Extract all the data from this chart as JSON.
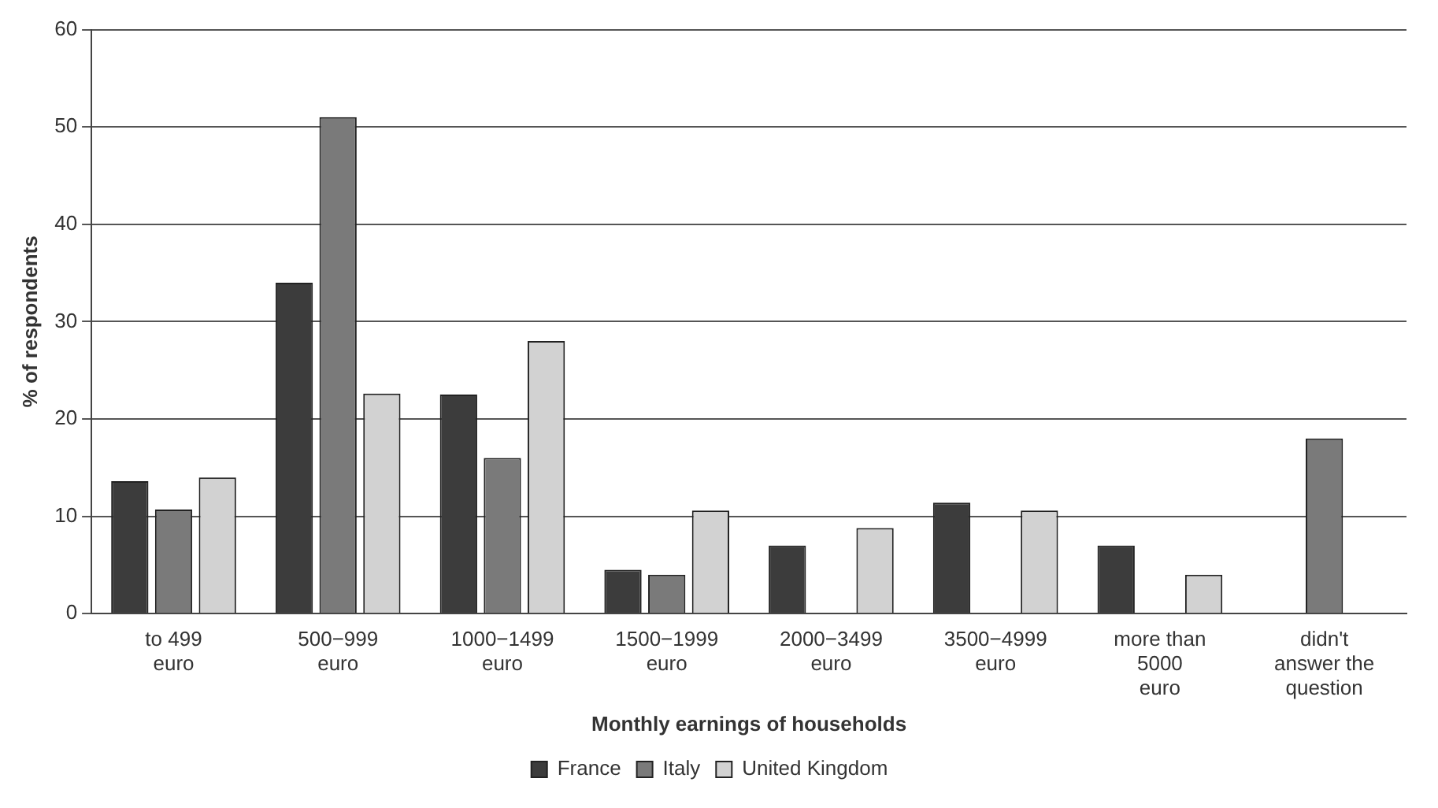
{
  "chart_data": {
    "type": "bar",
    "xlabel": "Monthly earnings of households",
    "ylabel": "% of respondents",
    "categories": [
      "to 499\neuro",
      "500−999\neuro",
      "1000−1499\neuro",
      "1500−1999\neuro",
      "2000−3499\neuro",
      "3500−4999\neuro",
      "more than\n5000\neuro",
      "didn't\nanswer the\nquestion"
    ],
    "series": [
      {
        "name": "France",
        "color": "#3c3c3c",
        "values": [
          13.6,
          34,
          22.5,
          4.5,
          7,
          11.4,
          7,
          null
        ]
      },
      {
        "name": "Italy",
        "color": "#7a7a7a",
        "values": [
          10.7,
          51,
          16,
          4,
          null,
          null,
          null,
          18
        ]
      },
      {
        "name": "United Kingdom",
        "color": "#d2d2d2",
        "values": [
          14,
          22.6,
          28,
          10.6,
          8.8,
          10.6,
          4,
          null
        ]
      }
    ],
    "ylim": [
      0,
      60
    ],
    "yticks": [
      0,
      10,
      20,
      30,
      40,
      50,
      60
    ],
    "grid": "y",
    "legend": "bottom"
  }
}
